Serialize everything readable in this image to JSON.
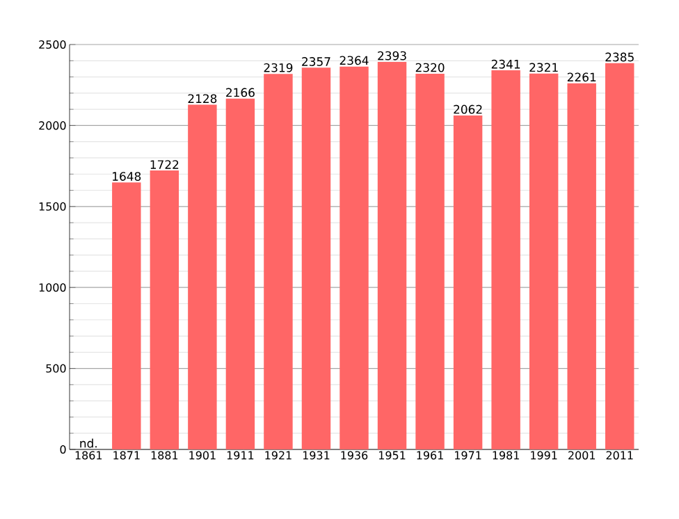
{
  "chart_data": {
    "type": "bar",
    "categories": [
      "1861",
      "1871",
      "1881",
      "1901",
      "1911",
      "1921",
      "1931",
      "1936",
      "1951",
      "1961",
      "1971",
      "1981",
      "1991",
      "2001",
      "2011"
    ],
    "values": [
      null,
      1648,
      1722,
      2128,
      2166,
      2319,
      2357,
      2364,
      2393,
      2320,
      2062,
      2341,
      2321,
      2261,
      2385
    ],
    "value_labels": [
      "nd.",
      "1648",
      "1722",
      "2128",
      "2166",
      "2319",
      "2357",
      "2364",
      "2393",
      "2320",
      "2062",
      "2341",
      "2321",
      "2261",
      "2385"
    ],
    "color": "#ff6666",
    "ylim": [
      0,
      2500
    ],
    "yticks": [
      0,
      500,
      1000,
      1500,
      2000,
      2500
    ],
    "grid": "y"
  }
}
